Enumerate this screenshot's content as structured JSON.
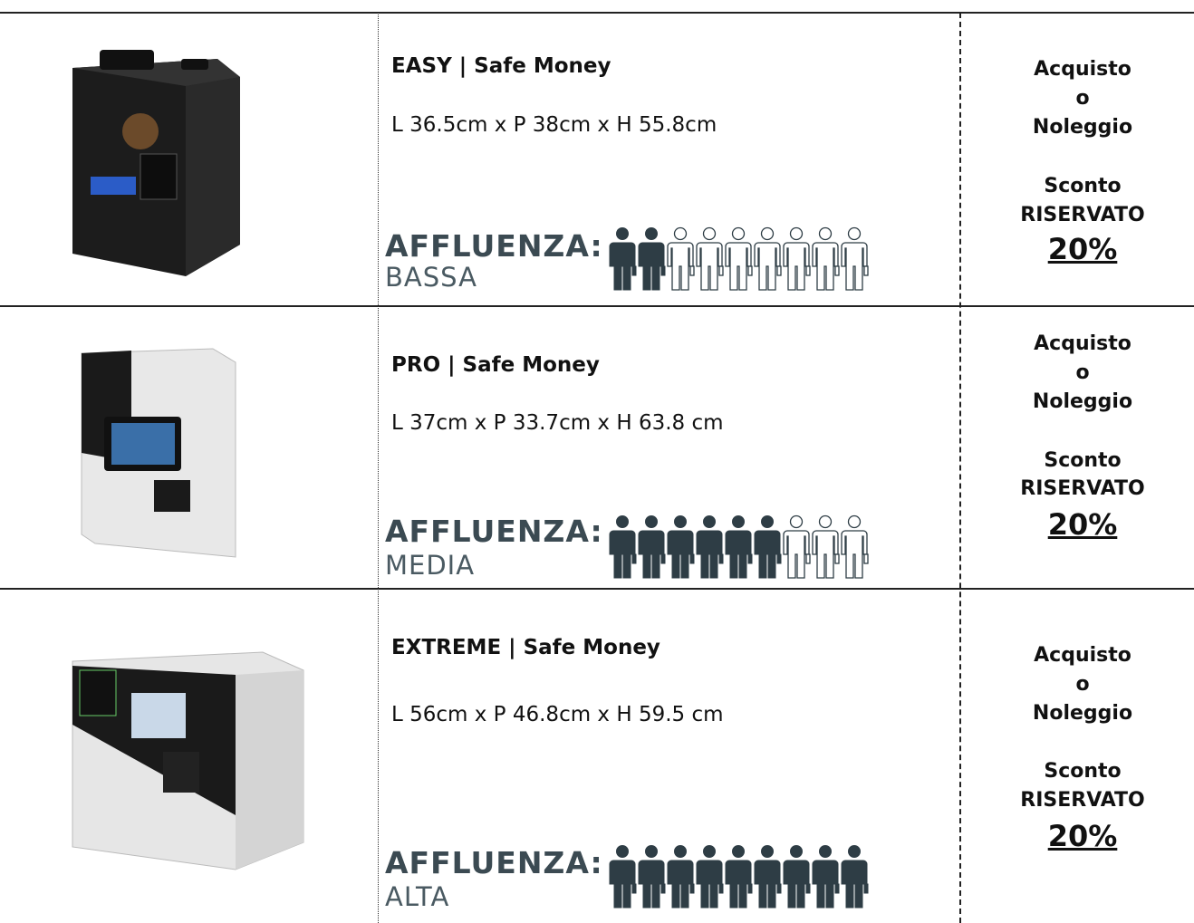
{
  "rows": [
    {
      "title": "EASY | Safe Money",
      "dimensions": "L 36.5cm x P 38cm x H 55.8cm",
      "affluenza": "AFFLUENZA:",
      "level": "BASSA",
      "people_filled": 2,
      "people_total": 9,
      "offer": {
        "line1": "Acquisto",
        "line2": "o",
        "line3": "Noleggio",
        "line4": "Sconto",
        "line5": "RISERVATO",
        "discount": "20%"
      }
    },
    {
      "title": "PRO | Safe Money",
      "dimensions": "L 37cm x P 33.7cm x H 63.8 cm",
      "affluenza": "AFFLUENZA:",
      "level": "MEDIA",
      "people_filled": 6,
      "people_total": 9,
      "offer": {
        "line1": "Acquisto",
        "line2": "o",
        "line3": "Noleggio",
        "line4": "Sconto",
        "line5": "RISERVATO",
        "discount": "20%"
      }
    },
    {
      "title": "EXTREME | Safe Money",
      "dimensions": "L 56cm x P 46.8cm x H 59.5 cm",
      "affluenza": "AFFLUENZA:",
      "level": "ALTA",
      "people_filled": 9,
      "people_total": 9,
      "offer": {
        "line1": "Acquisto",
        "line2": "o",
        "line3": "Noleggio",
        "line4": "Sconto",
        "line5": "RISERVATO",
        "discount": "20%"
      }
    }
  ]
}
